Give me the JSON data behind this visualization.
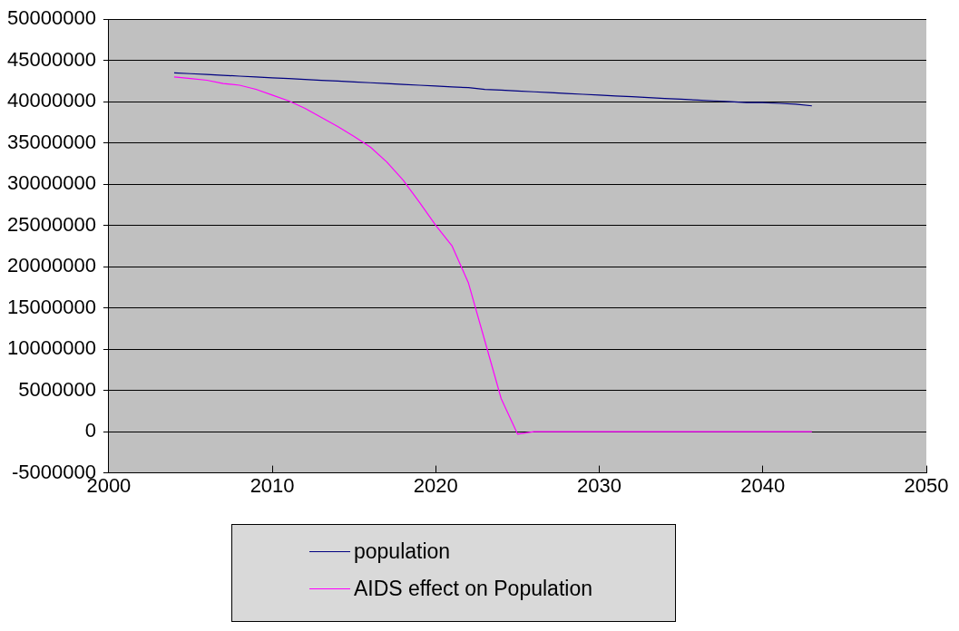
{
  "chart_data": {
    "type": "line",
    "x": [
      2004,
      2005,
      2006,
      2007,
      2008,
      2009,
      2010,
      2011,
      2012,
      2013,
      2014,
      2015,
      2016,
      2017,
      2018,
      2019,
      2020,
      2021,
      2022,
      2023,
      2024,
      2025,
      2026,
      2027,
      2028,
      2029,
      2030,
      2031,
      2032,
      2033,
      2034,
      2035,
      2036,
      2037,
      2038,
      2039,
      2040,
      2041,
      2042,
      2043
    ],
    "series": [
      {
        "name": "population",
        "color": "#000080",
        "values": [
          43500000,
          43400000,
          43300000,
          43200000,
          43100000,
          43000000,
          42900000,
          42800000,
          42700000,
          42600000,
          42500000,
          42400000,
          42300000,
          42200000,
          42100000,
          42000000,
          41900000,
          41800000,
          41700000,
          41500000,
          41400000,
          41300000,
          41200000,
          41100000,
          41000000,
          40900000,
          40800000,
          40700000,
          40600000,
          40500000,
          40400000,
          40300000,
          40200000,
          40100000,
          40000000,
          39900000,
          39900000,
          39800000,
          39700000,
          39500000
        ]
      },
      {
        "name": "AIDS effect on Population",
        "color": "#ff00ff",
        "values": [
          43000000,
          42800000,
          42600000,
          42200000,
          42000000,
          41500000,
          40800000,
          40100000,
          39200000,
          38100000,
          37000000,
          35800000,
          34500000,
          32700000,
          30500000,
          27800000,
          25000000,
          22500000,
          18000000,
          11000000,
          4000000,
          -300000,
          0,
          0,
          0,
          0,
          0,
          0,
          0,
          0,
          0,
          0,
          0,
          0,
          0,
          0,
          0,
          0,
          0,
          0
        ]
      }
    ],
    "xlim": [
      2000,
      2050
    ],
    "xticks": [
      2000,
      2010,
      2020,
      2030,
      2040,
      2050
    ],
    "ylim": [
      -5000000,
      50000000
    ],
    "yticks": [
      -5000000,
      0,
      5000000,
      10000000,
      15000000,
      20000000,
      25000000,
      30000000,
      35000000,
      40000000,
      45000000,
      50000000
    ],
    "grid": "y",
    "legend": "bottom",
    "marker": "none",
    "line_style": "solid"
  }
}
